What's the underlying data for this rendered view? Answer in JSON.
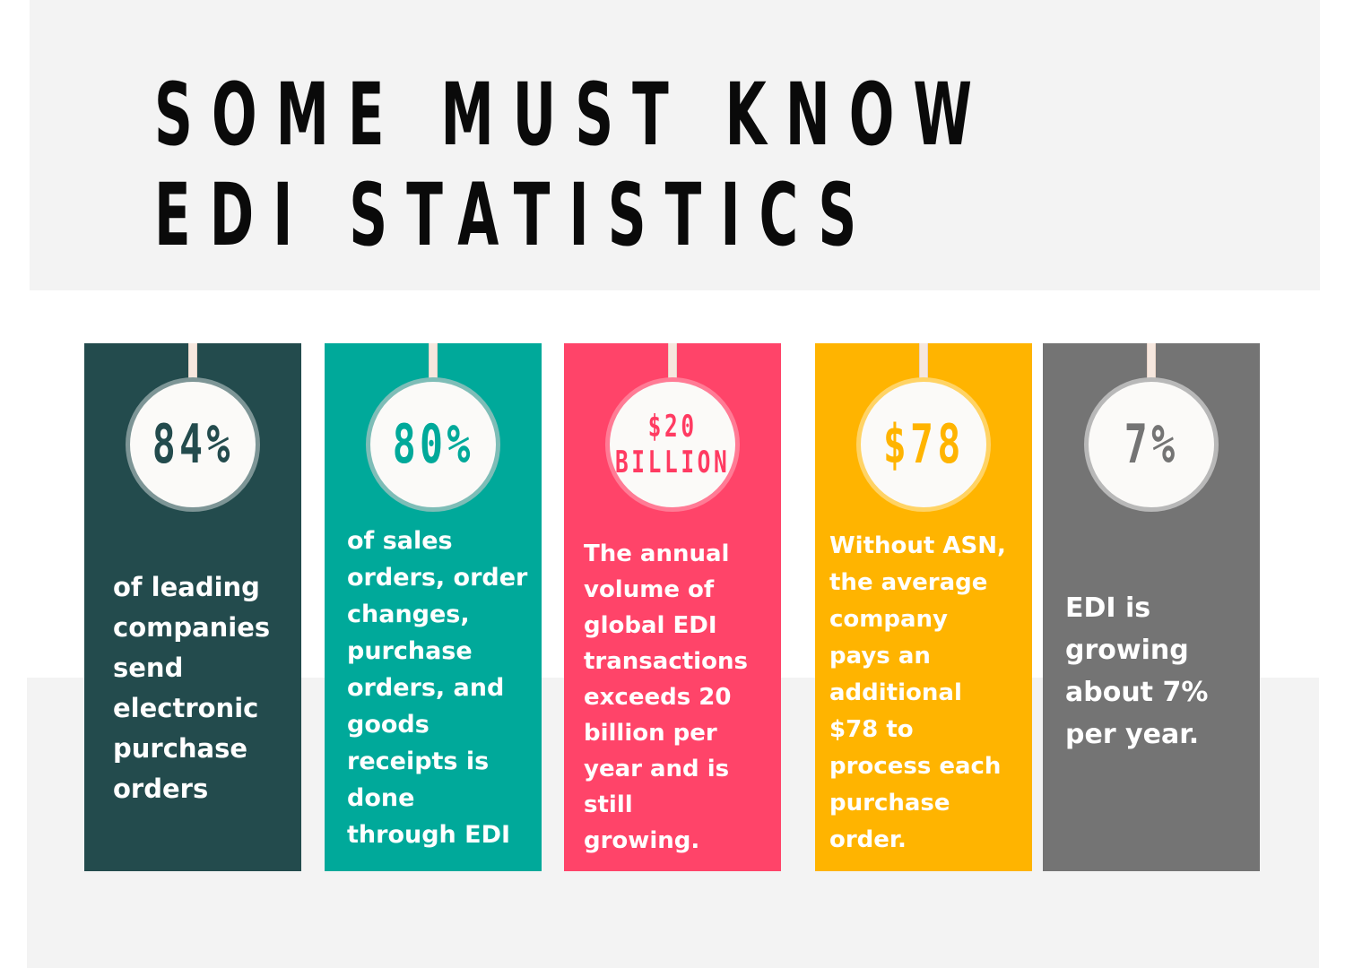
{
  "title": {
    "line1": "SOME MUST KNOW",
    "line2": "EDI STATISTICS"
  },
  "cards": [
    {
      "stat": "84%",
      "lines": [
        "of leading",
        "companies",
        "send",
        "electronic",
        "purchase",
        "orders"
      ],
      "color": "#234b4d"
    },
    {
      "stat": "80%",
      "lines": [
        "of sales",
        "orders, order",
        "changes,",
        "purchase",
        "orders, and",
        "goods",
        "receipts is",
        "done",
        "through EDI"
      ],
      "color": "#00a99a"
    },
    {
      "stat_line1": "$20",
      "stat_line2": "BILLION",
      "lines": [
        "The annual",
        "volume of",
        "global EDI",
        "transactions",
        "exceeds 20",
        "billion per",
        "year and is",
        "still",
        "growing."
      ],
      "color": "#ff4469"
    },
    {
      "stat": "$78",
      "lines": [
        "Without ASN,",
        "the average",
        "company",
        "pays an",
        "additional",
        "$78 to",
        "process each",
        "purchase",
        "order."
      ],
      "color": "#ffb400"
    },
    {
      "stat": "7%",
      "lines": [
        "EDI is",
        "growing",
        "about 7%",
        "per year."
      ],
      "color": "#747474"
    }
  ]
}
